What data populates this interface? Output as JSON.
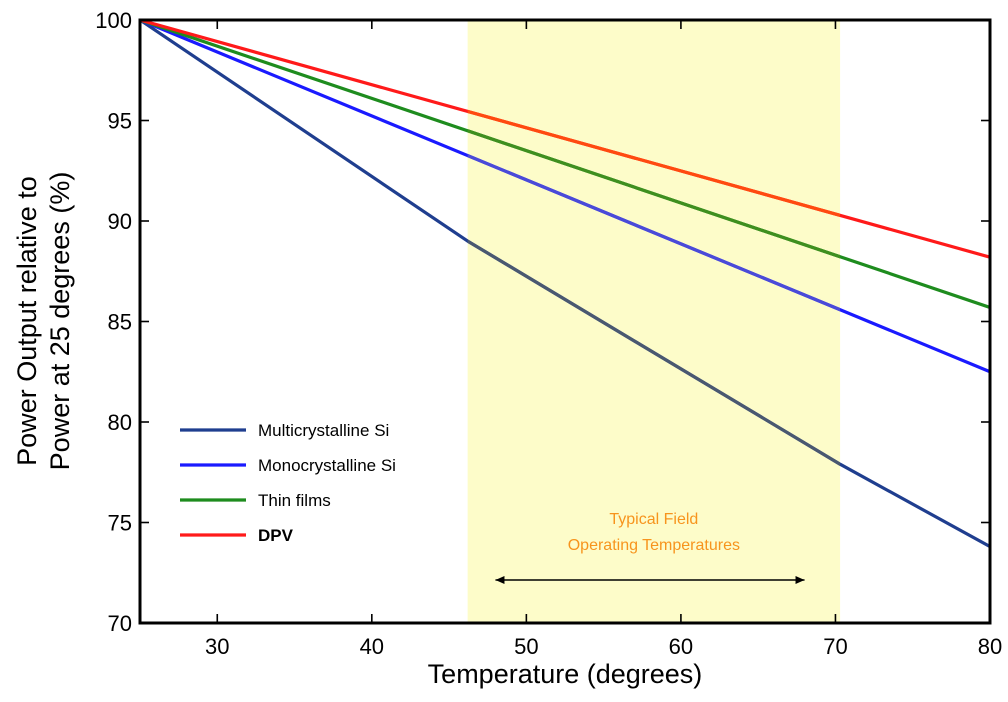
{
  "chart_data": {
    "type": "line",
    "xlabel": "Temperature (degrees)",
    "ylabel_lines": [
      "Power Output relative to",
      "Power at 25 degrees  (%)"
    ],
    "xlim": [
      25,
      80
    ],
    "ylim": [
      70,
      100
    ],
    "xticks": [
      30,
      40,
      50,
      60,
      70,
      80
    ],
    "yticks": [
      70,
      75,
      80,
      85,
      90,
      95,
      100
    ],
    "grid": false,
    "legend_position": "lower-left",
    "highlight_band": {
      "x_range": [
        46.2,
        70.3
      ],
      "color": "#fdfcc9",
      "label_lines": [
        "Typical Field",
        "Operating Temperatures"
      ],
      "label_color": "#f7941d",
      "arrow_range": [
        48,
        68
      ]
    },
    "series": [
      {
        "name": "Multicrystalline Si",
        "color": "#1f3e8f",
        "band_color": "#4a5870",
        "bold": false,
        "x": [
          25,
          46.2,
          70.3,
          80
        ],
        "y": [
          100,
          89,
          77.9,
          73.8
        ]
      },
      {
        "name": "Monocrystalline Si",
        "color": "#1a1aff",
        "band_color": "#4a4ad8",
        "bold": false,
        "x": [
          25,
          80
        ],
        "y": [
          100,
          82.5
        ]
      },
      {
        "name": "Thin films",
        "color": "#1e8c1e",
        "band_color": "#3f8f1f",
        "bold": false,
        "x": [
          25,
          80
        ],
        "y": [
          100,
          85.7
        ]
      },
      {
        "name": "DPV",
        "color": "#ff1a1a",
        "band_color": "#ff4a10",
        "bold": true,
        "x": [
          25,
          80
        ],
        "y": [
          100,
          88.2
        ]
      }
    ]
  }
}
